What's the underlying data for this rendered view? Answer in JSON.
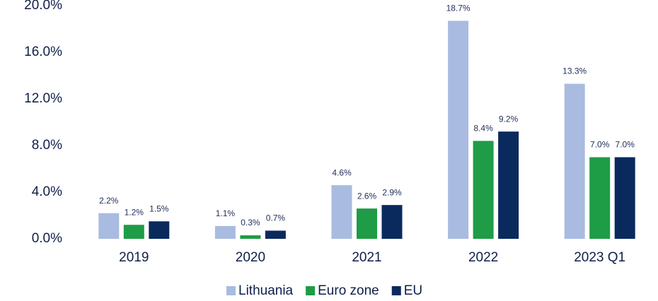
{
  "chart_data": {
    "type": "bar",
    "categories": [
      "2019",
      "2020",
      "2021",
      "2022",
      "2023 Q1"
    ],
    "series": [
      {
        "name": "Lithuania",
        "color": "#a9bbe0",
        "values": [
          2.2,
          1.1,
          4.6,
          18.7,
          13.3
        ],
        "value_labels": [
          "2.2%",
          "1.1%",
          "4.6%",
          "18.7%",
          "13.3%"
        ]
      },
      {
        "name": "Euro zone",
        "color": "#1e9c46",
        "values": [
          1.2,
          0.3,
          2.6,
          8.4,
          7.0
        ],
        "value_labels": [
          "1.2%",
          "0.3%",
          "2.6%",
          "8.4%",
          "7.0%"
        ]
      },
      {
        "name": "EU",
        "color": "#0a2a5e",
        "values": [
          1.5,
          0.7,
          2.9,
          9.2,
          7.0
        ],
        "value_labels": [
          "1.5%",
          "0.7%",
          "2.9%",
          "9.2%",
          "7.0%"
        ]
      }
    ],
    "ylim": [
      0,
      20
    ],
    "yticks": [
      {
        "value": 0,
        "label": "0.0%"
      },
      {
        "value": 4,
        "label": "4.0%"
      },
      {
        "value": 8,
        "label": "8.0%"
      },
      {
        "value": 12,
        "label": "12.0%"
      },
      {
        "value": 16,
        "label": "16.0%"
      },
      {
        "value": 20,
        "label": "20.0%"
      }
    ],
    "legend": "bottom"
  }
}
